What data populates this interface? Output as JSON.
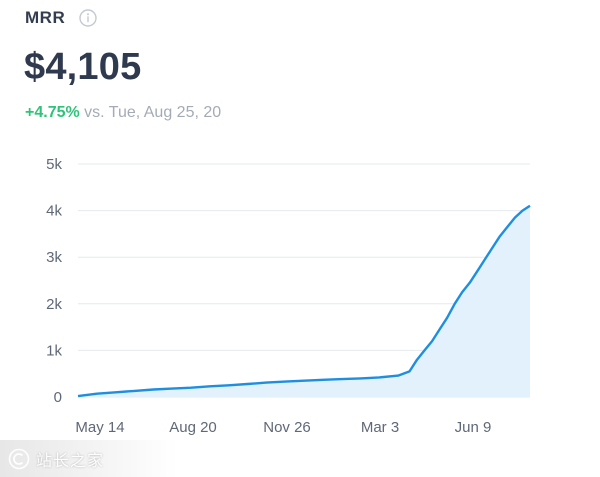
{
  "metric": {
    "name": "MRR",
    "info_icon": "info-icon",
    "value": "$4,105",
    "change_pct": "+4.75%",
    "change_text": "vs. Tue, Aug 25, 20"
  },
  "colors": {
    "line": "#1e8fe0",
    "fill": "#e3f1fc",
    "positive": "#2fc37a",
    "grid": "#e6e9ee",
    "axis_text": "#5f6878"
  },
  "chart_data": {
    "type": "area",
    "x": [
      0,
      0.5,
      1,
      1.5,
      2,
      2.5,
      3,
      3.5,
      4,
      4.5,
      5,
      5.5,
      6,
      6.5,
      7,
      7.5,
      8,
      8.5,
      8.8,
      9,
      9.2,
      9.4,
      9.6,
      9.8,
      10,
      10.2,
      10.4,
      10.6,
      10.8,
      11,
      11.2,
      11.4,
      11.6,
      11.8,
      12
    ],
    "y": [
      20,
      70,
      100,
      130,
      160,
      180,
      200,
      230,
      250,
      280,
      310,
      330,
      350,
      370,
      385,
      400,
      420,
      460,
      550,
      800,
      1000,
      1200,
      1450,
      1700,
      2000,
      2250,
      2450,
      2700,
      2950,
      3200,
      3450,
      3650,
      3850,
      4000,
      4105
    ],
    "x_ticks": [
      "May 14",
      "Aug 20",
      "Nov 26",
      "Mar 3",
      "Jun 9"
    ],
    "y_ticks": [
      "0",
      "1k",
      "2k",
      "3k",
      "4k",
      "5k"
    ],
    "ylim": [
      0,
      5000
    ],
    "grid": true
  },
  "watermark": {
    "text": "站长之家"
  }
}
